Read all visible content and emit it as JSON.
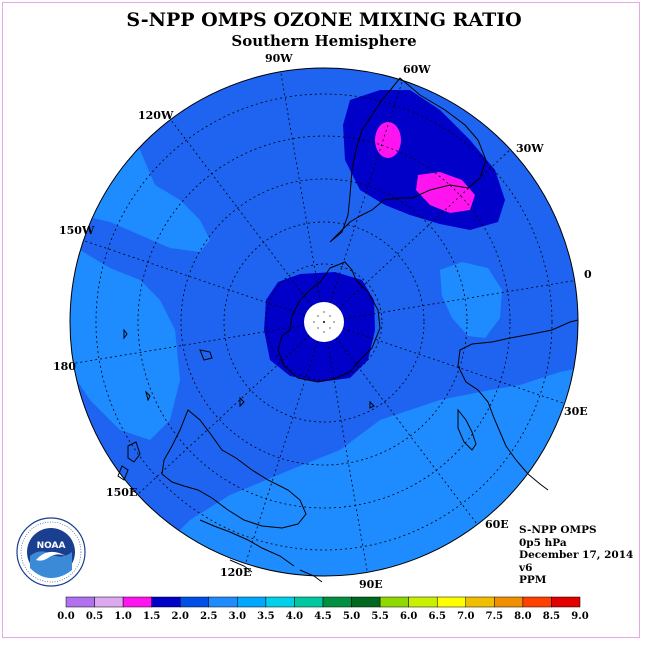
{
  "title": "S-NPP OMPS OZONE MIXING RATIO",
  "subtitle": "Southern Hemisphere",
  "longitude_labels": [
    "90W",
    "60W",
    "30W",
    "0",
    "30E",
    "60E",
    "90E",
    "120E",
    "150E",
    "180",
    "150W",
    "120W"
  ],
  "info": {
    "instrument": "S-NPP OMPS",
    "level": "0p5 hPa",
    "date": "December 17, 2014",
    "version": "v6",
    "units": "PPM"
  },
  "logo": {
    "text": "NOAA"
  },
  "colorbar": {
    "ticks": [
      "0.0",
      "0.5",
      "1.0",
      "1.5",
      "2.0",
      "2.5",
      "3.0",
      "3.5",
      "4.0",
      "4.5",
      "5.0",
      "5.5",
      "6.0",
      "6.5",
      "7.0",
      "7.5",
      "8.0",
      "8.5",
      "9.0"
    ],
    "colors": [
      "#b070f0",
      "#dca8f0",
      "#ff14f0",
      "#0000c8",
      "#0050e8",
      "#1e8cff",
      "#00a8ff",
      "#00d0e8",
      "#00c8a0",
      "#009040",
      "#006820",
      "#90d800",
      "#c8f000",
      "#ffff00",
      "#f0c000",
      "#f09000",
      "#ff4000",
      "#e00000",
      "#906040"
    ]
  },
  "map_colors": {
    "level_2_0": "#1e64f0",
    "level_2_5": "#1e8cff",
    "level_3_0": "#00a8ff",
    "level_1_5": "#0000c8",
    "level_1_0": "#ff14f0"
  }
}
